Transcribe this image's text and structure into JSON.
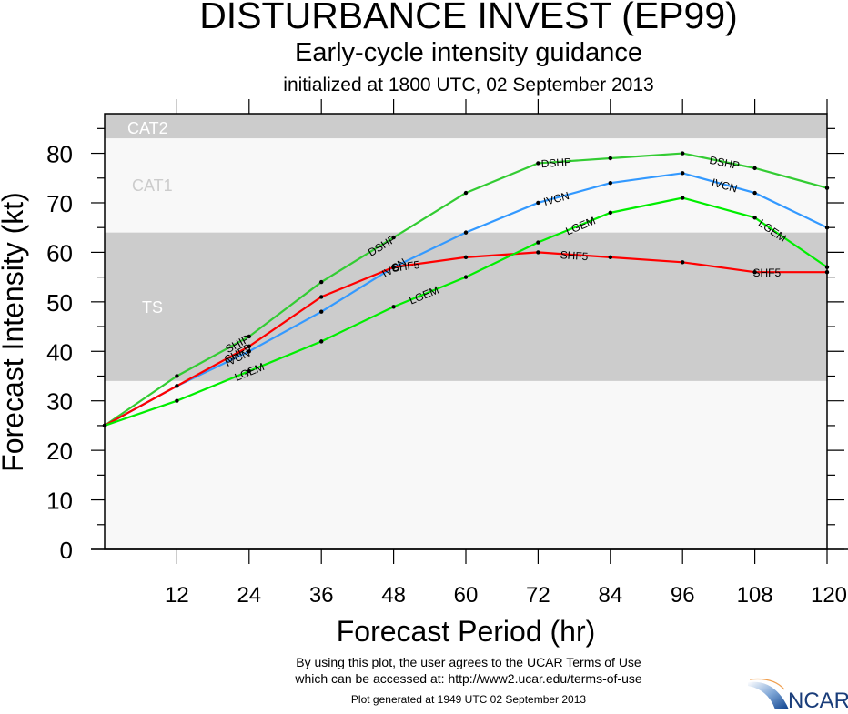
{
  "titles": {
    "main": "DISTURBANCE INVEST (EP99)",
    "sub": "Early-cycle intensity guidance",
    "init": "initialized at 1800 UTC, 02 September 2013"
  },
  "footer": {
    "line1": "By using this plot, the user agrees to the UCAR Terms of Use",
    "line2": "which can be accessed at: http://www2.ucar.edu/terms-of-use",
    "line3": "Plot generated at 1949 UTC   02 September 2013",
    "logo_text": "NCAR"
  },
  "chart_data": {
    "type": "line",
    "title": "DISTURBANCE INVEST (EP99)",
    "xlabel": "Forecast Period (hr)",
    "ylabel": "Forecast Intensity (kt)",
    "xlim": [
      0,
      120
    ],
    "ylim": [
      0,
      88
    ],
    "xticks": [
      12,
      24,
      36,
      48,
      60,
      72,
      84,
      96,
      108,
      120
    ],
    "yticks": [
      0,
      10,
      20,
      30,
      40,
      50,
      60,
      70,
      80
    ],
    "bands": [
      {
        "label": "CAT2",
        "from": 83,
        "to": 88,
        "color": "#cccccc",
        "label_color": "#ffffff"
      },
      {
        "label": "CAT1",
        "from": 64,
        "to": 83,
        "color": "#f8f8f8",
        "label_color": "#cccccc"
      },
      {
        "label": "TS",
        "from": 34,
        "to": 64,
        "color": "#cccccc",
        "label_color": "#ffffff"
      },
      {
        "label": "",
        "from": 0,
        "to": 34,
        "color": "#f8f8f8",
        "label_color": "#cccccc"
      }
    ],
    "x": [
      0,
      12,
      24,
      36,
      48,
      60,
      72,
      84,
      96,
      108,
      120
    ],
    "series": [
      {
        "name": "DSHP",
        "labels": [
          "SHIP",
          "DSHP"
        ],
        "color": "#33cc33",
        "values": [
          25,
          35,
          43,
          54,
          63,
          72,
          78,
          79,
          80,
          77,
          73
        ]
      },
      {
        "name": "IVCN",
        "labels": [
          "IVCN"
        ],
        "color": "#3399ff",
        "values": [
          25,
          33,
          40,
          48,
          57,
          64,
          70,
          74,
          76,
          72,
          65
        ]
      },
      {
        "name": "SHF5",
        "labels": [
          "SHF5"
        ],
        "color": "#ff0000",
        "values": [
          25,
          33,
          41,
          51,
          57,
          59,
          60,
          59,
          58,
          56,
          56
        ]
      },
      {
        "name": "LGEM",
        "labels": [
          "LGEM"
        ],
        "color": "#00ee00",
        "values": [
          25,
          30,
          36,
          42,
          49,
          55,
          62,
          68,
          71,
          67,
          57
        ]
      }
    ],
    "grid": false,
    "legend": "inline-labels"
  }
}
